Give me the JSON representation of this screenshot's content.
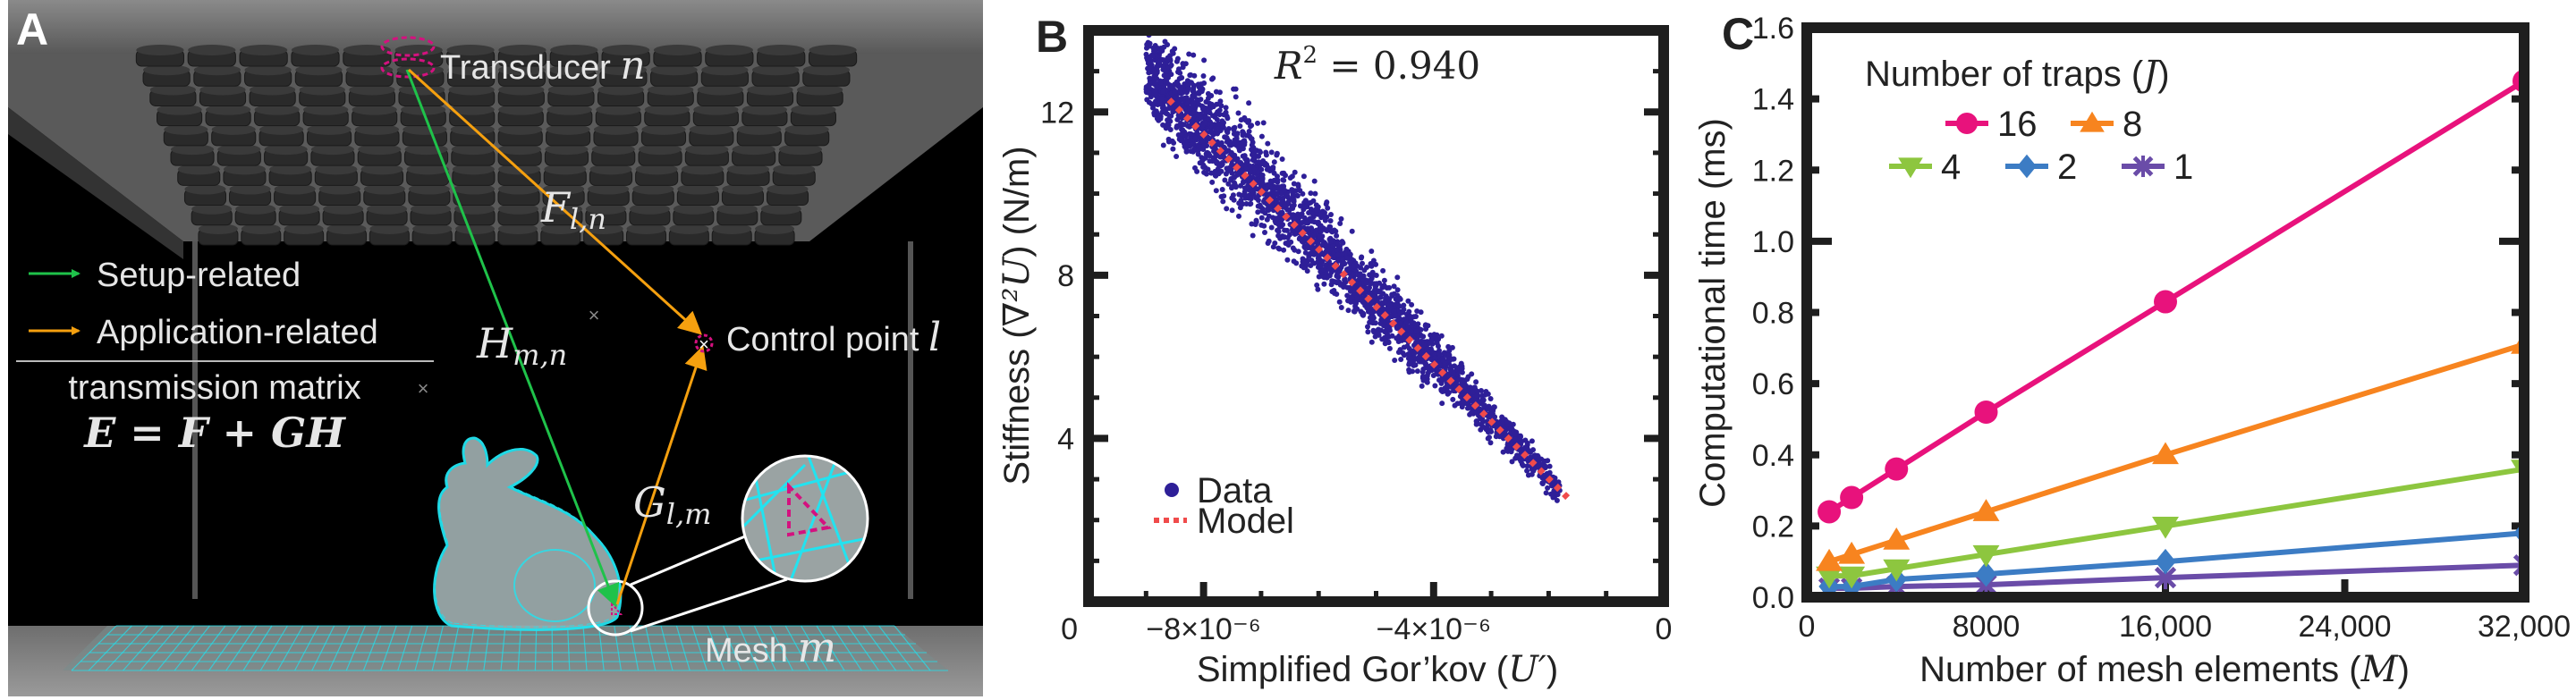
{
  "panel_a": {
    "letter": "A",
    "transducer_label": "Transducer ",
    "transducer_var": "n",
    "control_point_label": "Control point ",
    "control_point_var": "l",
    "mesh_label": "Mesh ",
    "mesh_var": "m",
    "arrow_F": {
      "main": "F",
      "sub": "l,n"
    },
    "arrow_H": {
      "main": "H",
      "sub": "m,n"
    },
    "arrow_G": {
      "main": "G",
      "sub": "l,m"
    },
    "legend": [
      {
        "label": "Setup-related",
        "color": "#1fc24a"
      },
      {
        "label": "Application-related",
        "color": "#f5a00f"
      }
    ],
    "matrix_caption": "transmission matrix",
    "equation": "E = F + GH",
    "colors": {
      "mesh": "#22e3f0",
      "highlight": "#d4117f",
      "background": "#000000"
    }
  },
  "chart_data": [
    {
      "panel": "B",
      "type": "scatter",
      "annotation": "R² = 0.940",
      "annotation_main": "R",
      "annotation_sup": "2",
      "annotation_rest": " = 0.940",
      "xlabel": "Simplified Gor’kov (U′)",
      "xlabel_text": "Simplified Gor’kov (",
      "xlabel_var": "U′",
      "xlabel_close": ")",
      "ylabel": "Stiffness (∇²U) (N/m)",
      "ylabel_text_1": "Stiffness (",
      "ylabel_var": "∇²U",
      "ylabel_text_2": ") (N/m)",
      "xlim": [
        -1e-05,
        0
      ],
      "ylim": [
        0,
        14
      ],
      "xticks": [
        {
          "value": -8e-06,
          "label": "−8×10⁻⁶"
        },
        {
          "value": -4e-06,
          "label": "−4×10⁻⁶"
        },
        {
          "value": 0,
          "label": "0"
        }
      ],
      "yticks": [
        {
          "value": 0,
          "label": "0"
        },
        {
          "value": 4,
          "label": "4"
        },
        {
          "value": 8,
          "label": "8"
        },
        {
          "value": 12,
          "label": "12"
        }
      ],
      "series": [
        {
          "name": "Data",
          "color": "#2e1f98",
          "kind": "scatter-cloud",
          "description": "dense cloud of ~thousands of points around the model line, tighter near the right end",
          "x_range": [
            -9e-06,
            -1.8e-06
          ],
          "y_range": [
            2.7,
            12.2
          ]
        },
        {
          "name": "Model",
          "color": "#f04b4b",
          "kind": "dotted-line",
          "x": [
            -8.6e-06,
            -1.67e-06
          ],
          "y": [
            12.3,
            2.55
          ]
        }
      ],
      "legend": [
        {
          "label": "Data",
          "marker": "dot"
        },
        {
          "label": "Model",
          "marker": "dotted-line"
        }
      ],
      "legend_position": "bottom-left",
      "grid": false
    },
    {
      "panel": "C",
      "type": "line",
      "xlabel": "Number of mesh elements (M)",
      "xlabel_text": "Number of mesh elements (",
      "xlabel_var": "M",
      "xlabel_close": ")",
      "ylabel": "Computational time (ms)",
      "xlim": [
        0,
        32000
      ],
      "ylim": [
        0,
        1.6
      ],
      "xticks": [
        {
          "value": 0,
          "label": "0"
        },
        {
          "value": 8000,
          "label": "8000"
        },
        {
          "value": 16000,
          "label": "16,000"
        },
        {
          "value": 24000,
          "label": "24,000"
        },
        {
          "value": 32000,
          "label": "32,000"
        }
      ],
      "yticks": [
        {
          "value": 0.0,
          "label": "0.0"
        },
        {
          "value": 0.2,
          "label": "0.2"
        },
        {
          "value": 0.4,
          "label": "0.4"
        },
        {
          "value": 0.6,
          "label": "0.6"
        },
        {
          "value": 0.8,
          "label": "0.8"
        },
        {
          "value": 1.0,
          "label": "1.0"
        },
        {
          "value": 1.2,
          "label": "1.2"
        },
        {
          "value": 1.4,
          "label": "1.4"
        },
        {
          "value": 1.6,
          "label": "1.6"
        }
      ],
      "legend_title": "Number of traps (J)",
      "legend_title_text": "Number of traps (",
      "legend_title_var": "J",
      "legend_title_close": ")",
      "legend_position": "top-left",
      "x": [
        1000,
        2000,
        4000,
        8000,
        16000,
        32000
      ],
      "series": [
        {
          "name": "16",
          "color": "#e8127c",
          "marker": "circle",
          "values": [
            0.24,
            0.28,
            0.36,
            0.52,
            0.83,
            1.45
          ]
        },
        {
          "name": "8",
          "color": "#f7841f",
          "marker": "triangle-up",
          "values": [
            0.1,
            0.12,
            0.16,
            0.24,
            0.4,
            0.71
          ]
        },
        {
          "name": "4",
          "color": "#8dc63f",
          "marker": "triangle-down",
          "values": [
            0.06,
            0.06,
            0.08,
            0.12,
            0.2,
            0.36
          ]
        },
        {
          "name": "2",
          "color": "#3c7cc4",
          "marker": "diamond",
          "values": [
            0.03,
            0.03,
            0.05,
            0.065,
            0.1,
            0.18
          ]
        },
        {
          "name": "1",
          "color": "#6a4ca8",
          "marker": "x",
          "values": [
            0.025,
            0.025,
            0.03,
            0.035,
            0.055,
            0.09
          ]
        }
      ],
      "grid": false
    }
  ],
  "panel_b": {
    "letter": "B"
  },
  "panel_c": {
    "letter": "C"
  }
}
